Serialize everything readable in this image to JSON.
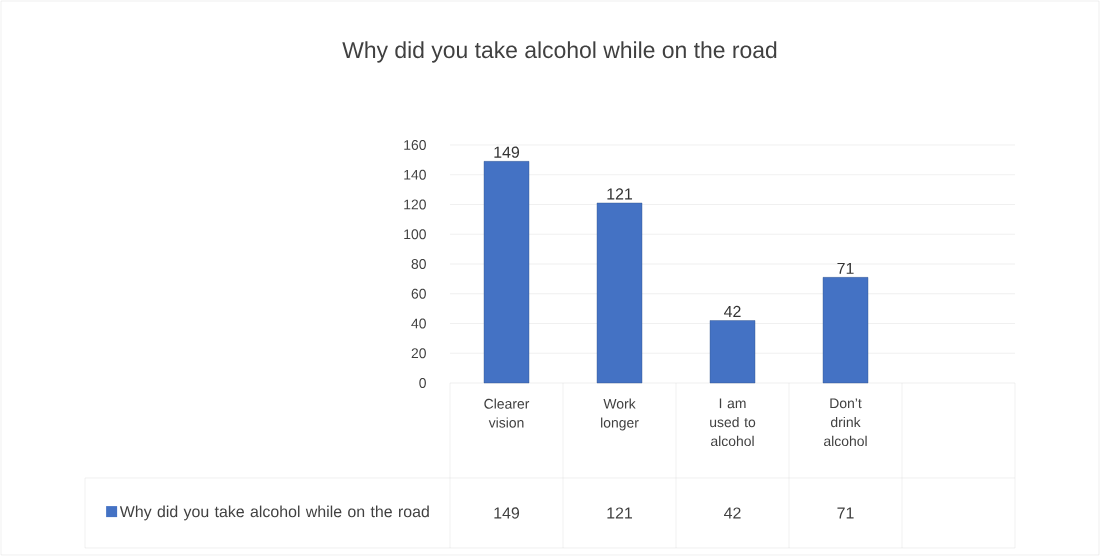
{
  "chart_data": {
    "type": "bar",
    "title": "Why did you take alcohol while on the road",
    "categories": [
      "Clearer vision",
      "Work longer",
      "I am used to alcohol",
      "Don’t drink alcohol",
      null
    ],
    "series": [
      {
        "name": "Why did you take alcohol while on the road",
        "color": "#4472c4",
        "values": [
          149,
          121,
          42,
          71,
          null
        ],
        "value_labels": [
          "149",
          "121",
          "42",
          "71",
          null
        ]
      }
    ],
    "ylim": [
      0,
      160
    ],
    "yticks": [
      0,
      20,
      40,
      60,
      80,
      100,
      120,
      140,
      160
    ],
    "grid": "y",
    "legend": "bottom",
    "annotations": [
      "149",
      "121",
      "42",
      "71"
    ]
  }
}
